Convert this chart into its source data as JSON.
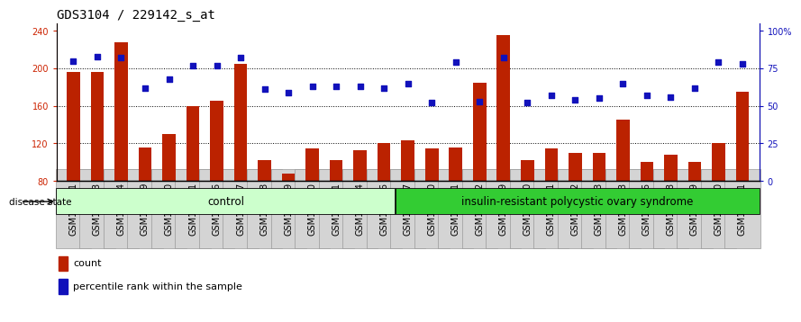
{
  "title": "GDS3104 / 229142_s_at",
  "samples": [
    "GSM155631",
    "GSM155643",
    "GSM155644",
    "GSM155729",
    "GSM156170",
    "GSM156171",
    "GSM156176",
    "GSM156177",
    "GSM156178",
    "GSM156179",
    "GSM156180",
    "GSM156181",
    "GSM156184",
    "GSM156186",
    "GSM156187",
    "GSM156510",
    "GSM156511",
    "GSM156512",
    "GSM156749",
    "GSM156750",
    "GSM156751",
    "GSM156752",
    "GSM156753",
    "GSM156763",
    "GSM156946",
    "GSM156948",
    "GSM156949",
    "GSM156950",
    "GSM156951"
  ],
  "bar_values": [
    196,
    196,
    228,
    116,
    130,
    160,
    165,
    205,
    102,
    88,
    115,
    102,
    113,
    120,
    123,
    115,
    116,
    185,
    235,
    102,
    115,
    110,
    110,
    145,
    100,
    108,
    100,
    120,
    175
  ],
  "percentile_values": [
    80,
    83,
    82,
    62,
    68,
    77,
    77,
    82,
    61,
    59,
    63,
    63,
    63,
    62,
    65,
    52,
    79,
    53,
    82,
    52,
    57,
    54,
    55,
    65,
    57,
    56,
    62,
    79,
    78
  ],
  "control_count": 14,
  "bar_color": "#bb2200",
  "percentile_color": "#1111bb",
  "control_color": "#ccffcc",
  "disease_color": "#33cc33",
  "yticks_left": [
    80,
    120,
    160,
    200,
    240
  ],
  "yticks_right": [
    0,
    25,
    50,
    75,
    100
  ],
  "ylim_left": [
    80,
    248
  ],
  "left_axis_color": "#cc2200",
  "right_axis_color": "#1111bb",
  "tick_fontsize": 7.0,
  "title_fontsize": 10,
  "legend_count_label": "count",
  "legend_pct_label": "percentile rank within the sample",
  "disease_state_label": "disease state",
  "control_label": "control",
  "disease_label": "insulin-resistant polycystic ovary syndrome"
}
